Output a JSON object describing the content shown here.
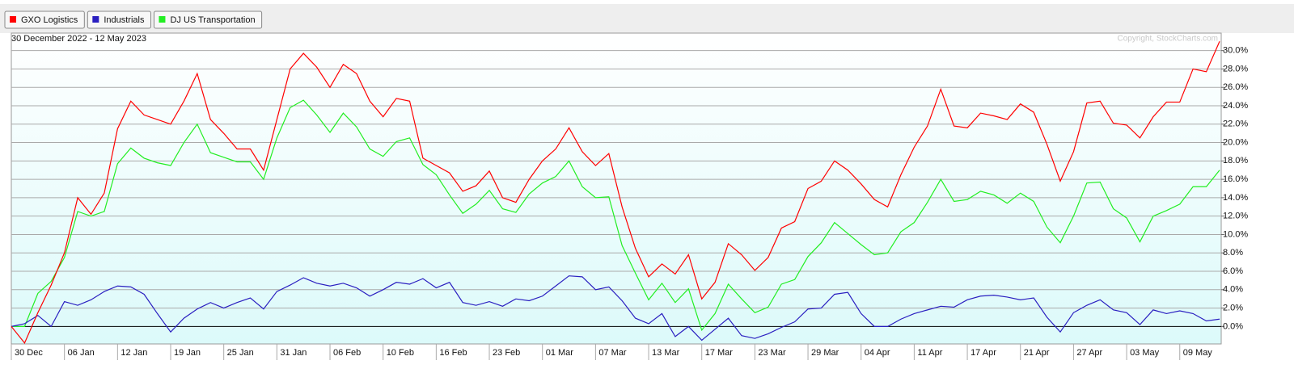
{
  "chart_data": {
    "type": "line",
    "subtitle": "30 December 2022 - 12 May 2023",
    "copyright": "Copyright, StockCharts.com",
    "categories": [
      "30 Dec",
      null,
      null,
      null,
      "06 Jan",
      null,
      null,
      null,
      "12 Jan",
      null,
      null,
      null,
      "19 Jan",
      null,
      null,
      null,
      "25 Jan",
      null,
      null,
      null,
      "31 Jan",
      null,
      null,
      null,
      "06 Feb",
      null,
      null,
      null,
      "10 Feb",
      null,
      null,
      null,
      "16 Feb",
      null,
      null,
      null,
      "23 Feb",
      null,
      null,
      null,
      "01 Mar",
      null,
      null,
      null,
      "07 Mar",
      null,
      null,
      null,
      "13 Mar",
      null,
      null,
      null,
      "17 Mar",
      null,
      null,
      null,
      "23 Mar",
      null,
      null,
      null,
      "29 Mar",
      null,
      null,
      null,
      "04 Apr",
      null,
      null,
      null,
      "11 Apr",
      null,
      null,
      null,
      "17 Apr",
      null,
      null,
      null,
      "21 Apr",
      null,
      null,
      null,
      "27 Apr",
      null,
      null,
      null,
      "03 May",
      null,
      null,
      null,
      "09 May",
      null,
      null,
      null
    ],
    "series": [
      {
        "name": "GXO Logistics",
        "color": "#ff0000",
        "values": [
          0,
          -1.8,
          1.5,
          4.5,
          8,
          14,
          12.2,
          14.5,
          21.5,
          24.5,
          23,
          22.5,
          22,
          24.5,
          27.5,
          22.5,
          21,
          19.3,
          19.3,
          17,
          22.5,
          28,
          29.7,
          28.2,
          26,
          28.5,
          27.5,
          24.5,
          22.8,
          24.8,
          24.5,
          18.3,
          17.5,
          16.7,
          14.7,
          15.3,
          16.9,
          14,
          13.5,
          16,
          18,
          19.3,
          21.6,
          19,
          17.5,
          18.8,
          13,
          8.5,
          5.4,
          6.8,
          5.7,
          7.8,
          3,
          4.8,
          9,
          7.8,
          6.1,
          7.5,
          10.7,
          11.4,
          15,
          15.8,
          18,
          17,
          15.5,
          13.8,
          13,
          16.5,
          19.5,
          21.8,
          25.8,
          21.8,
          21.6,
          23.2,
          22.9,
          22.5,
          24.2,
          23.3,
          19.8,
          15.8,
          19,
          24.3,
          24.5,
          22.1,
          21.9,
          20.5,
          22.8,
          24.4,
          24.4,
          28,
          27.7,
          31
        ]
      },
      {
        "name": "Industrials",
        "color": "#2a1fc0",
        "values": [
          0,
          0.3,
          1.2,
          0,
          2.7,
          2.3,
          2.9,
          3.8,
          4.4,
          4.3,
          3.5,
          1.4,
          -0.6,
          0.9,
          1.9,
          2.6,
          2,
          2.6,
          3.1,
          1.9,
          3.8,
          4.5,
          5.3,
          4.7,
          4.4,
          4.7,
          4.2,
          3.3,
          4,
          4.8,
          4.6,
          5.2,
          4.2,
          4.8,
          2.6,
          2.3,
          2.7,
          2.2,
          3,
          2.8,
          3.3,
          4.4,
          5.5,
          5.4,
          4,
          4.3,
          2.8,
          0.9,
          0.3,
          1.4,
          -1.1,
          0,
          -1.5,
          -0.3,
          0.9,
          -1,
          -1.3,
          -0.8,
          -0.1,
          0.5,
          1.9,
          2,
          3.5,
          3.7,
          1.4,
          0,
          0,
          0.8,
          1.4,
          1.8,
          2.2,
          2.1,
          2.9,
          3.3,
          3.4,
          3.2,
          2.9,
          3.1,
          1,
          -0.6,
          1.5,
          2.3,
          2.9,
          1.8,
          1.5,
          0.2,
          1.8,
          1.4,
          1.7,
          1.4,
          0.6,
          0.8
        ]
      },
      {
        "name": "DJ US Transportation",
        "color": "#22ee22",
        "values": [
          0,
          0,
          3.6,
          4.9,
          7.5,
          12.5,
          12,
          12.5,
          17.7,
          19.4,
          18.3,
          17.8,
          17.5,
          20,
          22,
          18.9,
          18.4,
          17.9,
          17.9,
          16,
          20.5,
          23.8,
          24.6,
          23,
          21.1,
          23.2,
          21.7,
          19.3,
          18.5,
          20.1,
          20.5,
          17.6,
          16.5,
          14.3,
          12.3,
          13.3,
          14.8,
          12.8,
          12.4,
          14.4,
          15.6,
          16.3,
          18,
          15.2,
          14,
          14.1,
          8.8,
          5.8,
          2.9,
          4.7,
          2.6,
          4.1,
          -0.4,
          1.4,
          4.6,
          3,
          1.5,
          2.1,
          4.6,
          5.1,
          7.6,
          9.1,
          11.3,
          10.1,
          8.9,
          7.8,
          8,
          10.3,
          11.3,
          13.5,
          16,
          13.6,
          13.8,
          14.7,
          14.3,
          13.4,
          14.5,
          13.6,
          10.8,
          9.1,
          12,
          15.6,
          15.7,
          12.8,
          11.8,
          9.2,
          12,
          12.6,
          13.3,
          15.2,
          15.2,
          17
        ]
      }
    ],
    "ylim": [
      -1.9,
      31.9
    ],
    "yticks": [
      {
        "value": 0,
        "label": "0.0%"
      },
      {
        "value": 2,
        "label": "2.0%"
      },
      {
        "value": 4,
        "label": "4.0%"
      },
      {
        "value": 6,
        "label": "6.0%"
      },
      {
        "value": 8,
        "label": "8.0%"
      },
      {
        "value": 10,
        "label": "10.0%"
      },
      {
        "value": 12,
        "label": "12.0%"
      },
      {
        "value": 14,
        "label": "14.0%"
      },
      {
        "value": 16,
        "label": "16.0%"
      },
      {
        "value": 18,
        "label": "18.0%"
      },
      {
        "value": 20,
        "label": "20.0%"
      },
      {
        "value": 22,
        "label": "22.0%"
      },
      {
        "value": 24,
        "label": "24.0%"
      },
      {
        "value": 26,
        "label": "26.0%"
      },
      {
        "value": 28,
        "label": "28.0%"
      },
      {
        "value": 30,
        "label": "30.0%"
      }
    ],
    "grid": true
  }
}
